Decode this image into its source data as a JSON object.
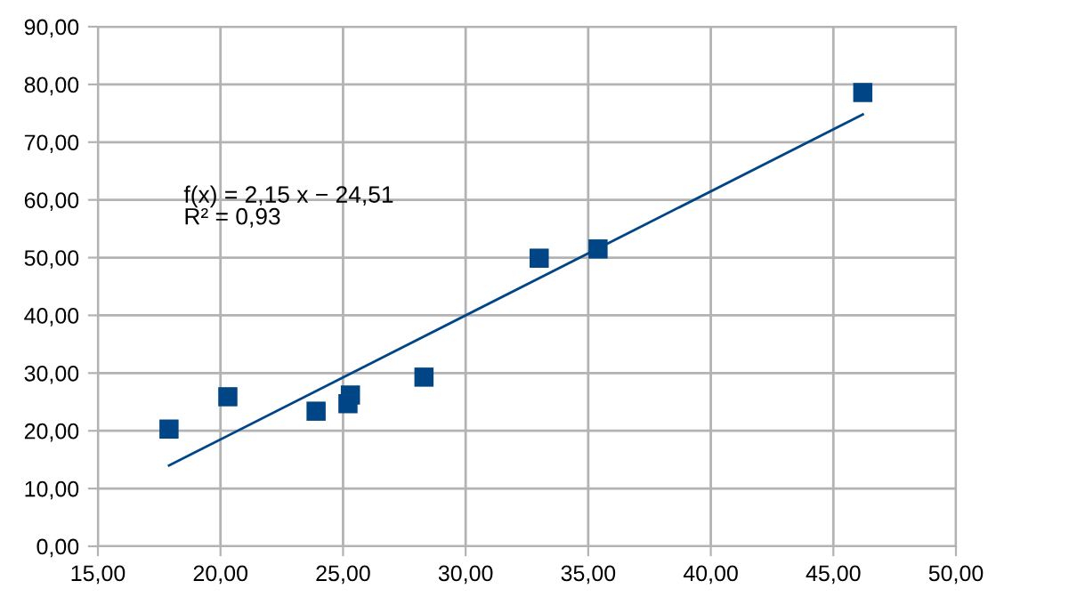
{
  "chart_data": {
    "type": "scatter",
    "marker": "square",
    "grid": true,
    "legend": false,
    "xlim": [
      15,
      50
    ],
    "ylim": [
      0,
      90
    ],
    "xticks": [
      {
        "value": 15,
        "label": "15,00"
      },
      {
        "value": 20,
        "label": "20,00"
      },
      {
        "value": 25,
        "label": "25,00"
      },
      {
        "value": 30,
        "label": "30,00"
      },
      {
        "value": 35,
        "label": "35,00"
      },
      {
        "value": 40,
        "label": "40,00"
      },
      {
        "value": 45,
        "label": "45,00"
      },
      {
        "value": 50,
        "label": "50,00"
      }
    ],
    "yticks": [
      {
        "value": 0,
        "label": "0,00"
      },
      {
        "value": 10,
        "label": "10,00"
      },
      {
        "value": 20,
        "label": "20,00"
      },
      {
        "value": 30,
        "label": "30,00"
      },
      {
        "value": 40,
        "label": "40,00"
      },
      {
        "value": 50,
        "label": "50,00"
      },
      {
        "value": 60,
        "label": "60,00"
      },
      {
        "value": 70,
        "label": "70,00"
      },
      {
        "value": 80,
        "label": "80,00"
      },
      {
        "value": 90,
        "label": "90,00"
      }
    ],
    "series": [
      {
        "color": "#004586",
        "x": [
          17.9,
          20.3,
          23.9,
          25.2,
          25.3,
          28.3,
          33.0,
          35.4,
          46.2
        ],
        "values": [
          20.3,
          25.9,
          23.4,
          24.7,
          26.2,
          29.3,
          49.9,
          51.5,
          78.6
        ]
      },
      {
        "type": "line",
        "color": "#004586",
        "marker": "none",
        "x": [
          17.9,
          46.2
        ],
        "values": [
          14.0,
          74.8
        ]
      }
    ],
    "annotations": [
      "f(x) = 2,15 x − 24,51\nR² = 0,93"
    ]
  }
}
